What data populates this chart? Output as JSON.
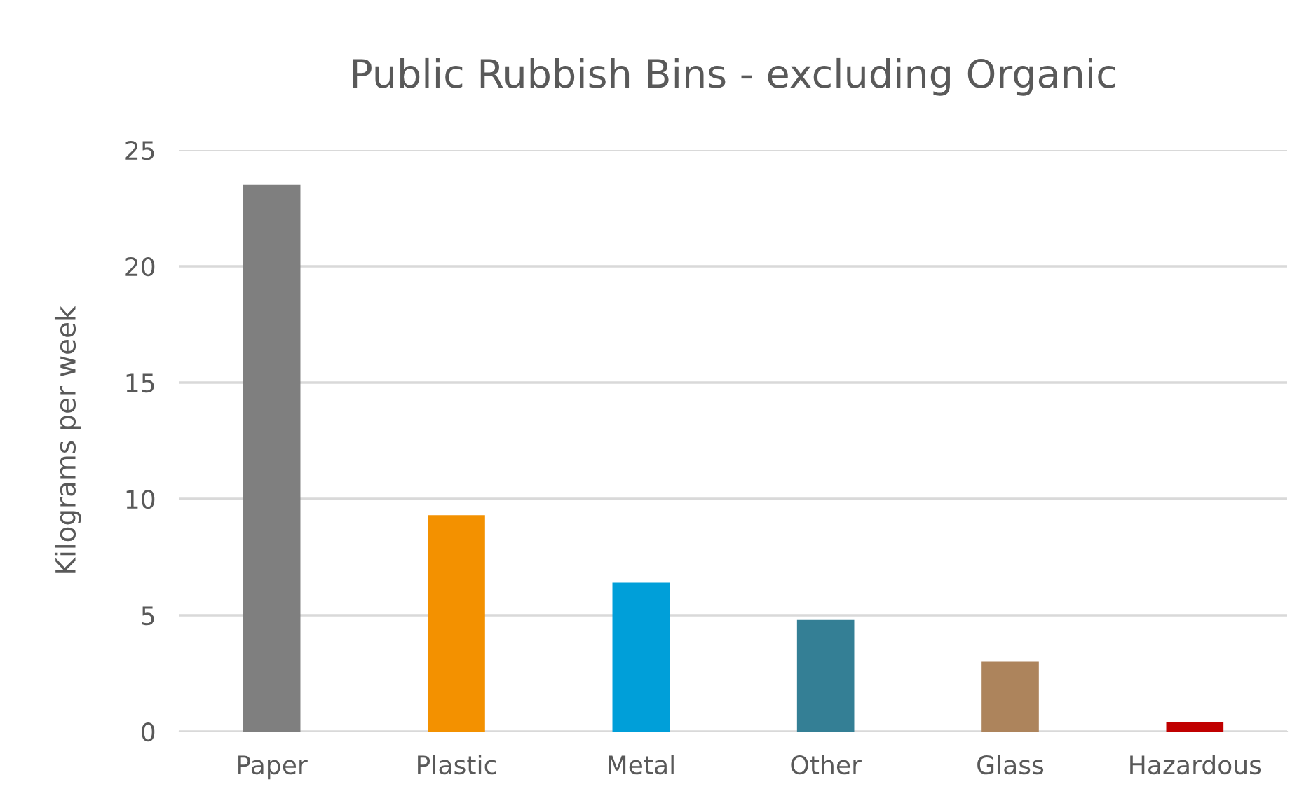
{
  "chart_data": {
    "type": "bar",
    "title": "Public Rubbish Bins - excluding Organic",
    "ylabel": "Kilograms per week",
    "categories": [
      "Paper",
      "Plastic",
      "Metal",
      "Other",
      "Glass",
      "Hazardous"
    ],
    "values": [
      23.5,
      9.3,
      6.4,
      4.8,
      3.0,
      0.4
    ],
    "colors": [
      "#7f7f7f",
      "#f39100",
      "#009fd9",
      "#347f95",
      "#ad845c",
      "#c00000"
    ],
    "ylim": [
      0,
      25
    ],
    "yticks": [
      0,
      5,
      10,
      15,
      20,
      25
    ],
    "grid": "y"
  }
}
